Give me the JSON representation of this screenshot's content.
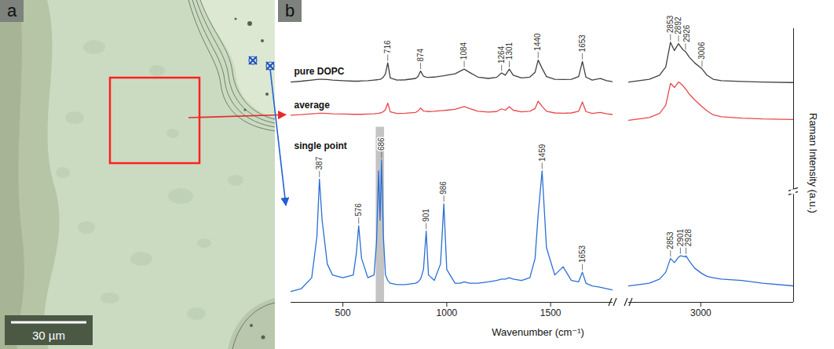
{
  "panel_a": {
    "letter": "a",
    "scale_bar": "30 µm"
  },
  "chart_data": {
    "type": "line",
    "letter": "b",
    "x_label": "Wavenumber (cm⁻¹)",
    "y_label": "Raman Intensity (a.u.)",
    "tick_labels": "x",
    "grid": false,
    "xlim": [
      250,
      1800
    ],
    "xticks": [
      500,
      1000,
      1500
    ],
    "x2lim": [
      2650,
      3450
    ],
    "x2ticks": [
      3000
    ],
    "ylim": [
      0,
      100
    ],
    "yticks": [],
    "shaded_range": {
      "x": [
        660,
        700
      ],
      "y": [
        0,
        64
      ]
    },
    "x": [
      250,
      300,
      350,
      375,
      387,
      400,
      425,
      450,
      500,
      550,
      565,
      576,
      590,
      620,
      650,
      662,
      672,
      679,
      686,
      695,
      705,
      716,
      728,
      760,
      800,
      850,
      862,
      874,
      888,
      901,
      912,
      940,
      970,
      986,
      1000,
      1040,
      1065,
      1084,
      1110,
      1150,
      1200,
      1240,
      1264,
      1282,
      1301,
      1320,
      1360,
      1400,
      1425,
      1440,
      1459,
      1480,
      1520,
      1560,
      1600,
      1635,
      1653,
      1670,
      1700,
      1740,
      1770,
      1800,
      2650,
      2700,
      2750,
      2800,
      2830,
      2853,
      2872,
      2892,
      2901,
      2915,
      2926,
      2928,
      2945,
      2970,
      3006,
      3030,
      3060,
      3100,
      3200,
      3300,
      3450
    ],
    "series": [
      {
        "name": "pure DOPC",
        "color": "#404040",
        "values": [
          80.5,
          80.8,
          81.2,
          81.4,
          81.5,
          81.5,
          81.4,
          81.2,
          81,
          80.8,
          80.8,
          80.8,
          80.9,
          81,
          81.2,
          81.3,
          81.4,
          81.5,
          81.7,
          82.3,
          83.5,
          87.5,
          82,
          81.2,
          81.3,
          81.8,
          82.5,
          84.5,
          82.6,
          82.3,
          82.2,
          82.3,
          82.6,
          82.8,
          83,
          83.5,
          84.5,
          85.2,
          84,
          82.3,
          81.8,
          82.2,
          83.8,
          83,
          85.2,
          83,
          82,
          82.3,
          84,
          88.5,
          85.5,
          82.5,
          81.5,
          81.4,
          81.5,
          82.5,
          88,
          82.3,
          81.2,
          81.8,
          81,
          80.6,
          80.5,
          81,
          81.5,
          83,
          86,
          95,
          92,
          94.5,
          93.5,
          92.2,
          91.6,
          91.4,
          89.5,
          87.5,
          85.3,
          83,
          81.5,
          81,
          80.7,
          80.5,
          80.3
        ],
        "peaks": [
          716,
          874,
          1084,
          1264,
          1301,
          1440,
          1653,
          2853,
          2892,
          2926,
          3006
        ]
      },
      {
        "name": "average",
        "color": "#e8474a",
        "values": [
          68.4,
          68.6,
          68.9,
          69,
          69.1,
          69.1,
          69,
          68.9,
          68.8,
          68.7,
          68.7,
          68.7,
          68.7,
          68.8,
          68.9,
          69,
          69.1,
          69.2,
          69.3,
          69.7,
          70.4,
          72.8,
          69.6,
          69,
          69.1,
          69.4,
          69.9,
          71,
          69.9,
          69.8,
          69.7,
          69.8,
          70,
          70.1,
          70.2,
          70.5,
          71.1,
          71.5,
          70.8,
          69.8,
          69.5,
          69.7,
          70.7,
          70.2,
          71.5,
          70.2,
          69.6,
          69.8,
          70.8,
          73.5,
          71.6,
          69.8,
          69.2,
          69.1,
          69.2,
          69.8,
          73.2,
          69.7,
          69,
          69.4,
          68.9,
          68.6,
          66.5,
          67,
          67.5,
          69,
          72,
          80,
          78.5,
          80.5,
          80,
          79,
          78,
          77.8,
          76,
          74,
          71.5,
          70,
          68.5,
          67.8,
          67.3,
          67,
          66.8
        ],
        "peaks": []
      },
      {
        "name": "single point",
        "color": "#2a6fd4",
        "values": [
          4,
          5,
          9,
          24,
          45,
          30,
          14,
          10,
          9,
          10,
          18,
          28,
          16,
          9,
          10,
          22,
          48,
          30,
          52,
          24,
          10,
          8,
          7,
          6.5,
          6.5,
          7,
          7.5,
          8.5,
          12,
          26,
          10,
          8,
          14,
          36,
          12,
          7,
          7,
          7.5,
          7,
          7,
          7.5,
          8,
          8.5,
          8.5,
          9,
          8.5,
          8,
          9,
          16,
          32,
          48,
          20,
          10,
          13,
          8,
          7.5,
          11,
          7,
          6,
          5.5,
          5,
          4.5,
          6,
          6.5,
          7,
          8.5,
          11,
          16,
          14.5,
          16.5,
          17,
          16.8,
          16.6,
          17,
          15,
          12.5,
          10.5,
          9.5,
          9,
          8.5,
          8,
          7,
          6
        ],
        "peaks": [
          387,
          576,
          686,
          901,
          986,
          1459,
          1653,
          2853,
          2901,
          2928
        ]
      }
    ]
  }
}
